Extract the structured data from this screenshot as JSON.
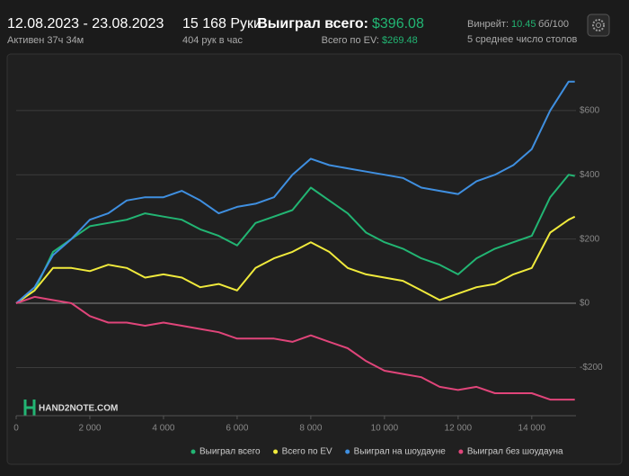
{
  "header": {
    "date_range": "12.08.2023 - 23.08.2023",
    "active": "Активен 37ч 34м",
    "hands": "15 168 Руки",
    "hands_per_hour": "404 рук в час",
    "won_label": "Выиграл всего:",
    "won_value": "$396.08",
    "ev_label": "Всего по EV:",
    "ev_value": "$269.48",
    "winrate_label": "Винрейт:",
    "winrate_value": "10.45",
    "winrate_unit": "бб/100",
    "tables": "5 среднее число столов"
  },
  "watermark": "HAND2NOTE.COM",
  "chart_data": {
    "type": "line",
    "x": [
      0,
      500,
      1000,
      1500,
      2000,
      2500,
      3000,
      3500,
      4000,
      4500,
      5000,
      5500,
      6000,
      6500,
      7000,
      7500,
      8000,
      8500,
      9000,
      9500,
      10000,
      10500,
      11000,
      11500,
      12000,
      12500,
      13000,
      13500,
      14000,
      14500,
      15000,
      15168
    ],
    "series": [
      {
        "name": "Выиграл всего",
        "color": "#22b573",
        "values": [
          0,
          40,
          160,
          200,
          240,
          250,
          260,
          280,
          270,
          260,
          230,
          210,
          180,
          250,
          270,
          290,
          360,
          320,
          280,
          220,
          190,
          170,
          140,
          120,
          90,
          140,
          170,
          190,
          210,
          330,
          400,
          396.08
        ]
      },
      {
        "name": "Всего по EV",
        "color": "#f0ea3c",
        "values": [
          0,
          40,
          110,
          110,
          100,
          120,
          110,
          80,
          90,
          80,
          50,
          60,
          40,
          110,
          140,
          160,
          190,
          160,
          110,
          90,
          80,
          70,
          40,
          10,
          30,
          50,
          60,
          90,
          110,
          220,
          260,
          269.48
        ]
      },
      {
        "name": "Выиграл на шоудауне",
        "color": "#3f8fe0",
        "values": [
          0,
          50,
          150,
          200,
          260,
          280,
          320,
          330,
          330,
          350,
          320,
          280,
          300,
          310,
          330,
          400,
          450,
          430,
          420,
          410,
          400,
          390,
          360,
          350,
          340,
          380,
          400,
          430,
          480,
          600,
          690,
          690
        ]
      },
      {
        "name": "Выиграл без шоудауна",
        "color": "#e0457a",
        "values": [
          0,
          20,
          10,
          0,
          -40,
          -60,
          -60,
          -70,
          -60,
          -70,
          -80,
          -90,
          -110,
          -110,
          -110,
          -120,
          -100,
          -120,
          -140,
          -180,
          -210,
          -220,
          -230,
          -260,
          -270,
          -260,
          -280,
          -280,
          -280,
          -300,
          -300,
          -300
        ]
      }
    ],
    "xlim": [
      0,
      15200
    ],
    "xticks": [
      0,
      {
        "value": 2000,
        "label": "2 000"
      },
      {
        "value": 4000,
        "label": "4 000"
      },
      {
        "value": 6000,
        "label": "6 000"
      },
      {
        "value": 8000,
        "label": "8 000"
      },
      {
        "value": 10000,
        "label": "10 000"
      },
      {
        "value": 12000,
        "label": "12 000"
      },
      {
        "value": 14000,
        "label": "14 000"
      }
    ],
    "ylim": [
      -350,
      720
    ],
    "yticks": [
      {
        "value": -200,
        "label": "-$200"
      },
      {
        "value": 0,
        "label": "$0"
      },
      {
        "value": 200,
        "label": "$200"
      },
      {
        "value": 400,
        "label": "$400"
      },
      {
        "value": 600,
        "label": "$600"
      }
    ],
    "grid": true
  }
}
